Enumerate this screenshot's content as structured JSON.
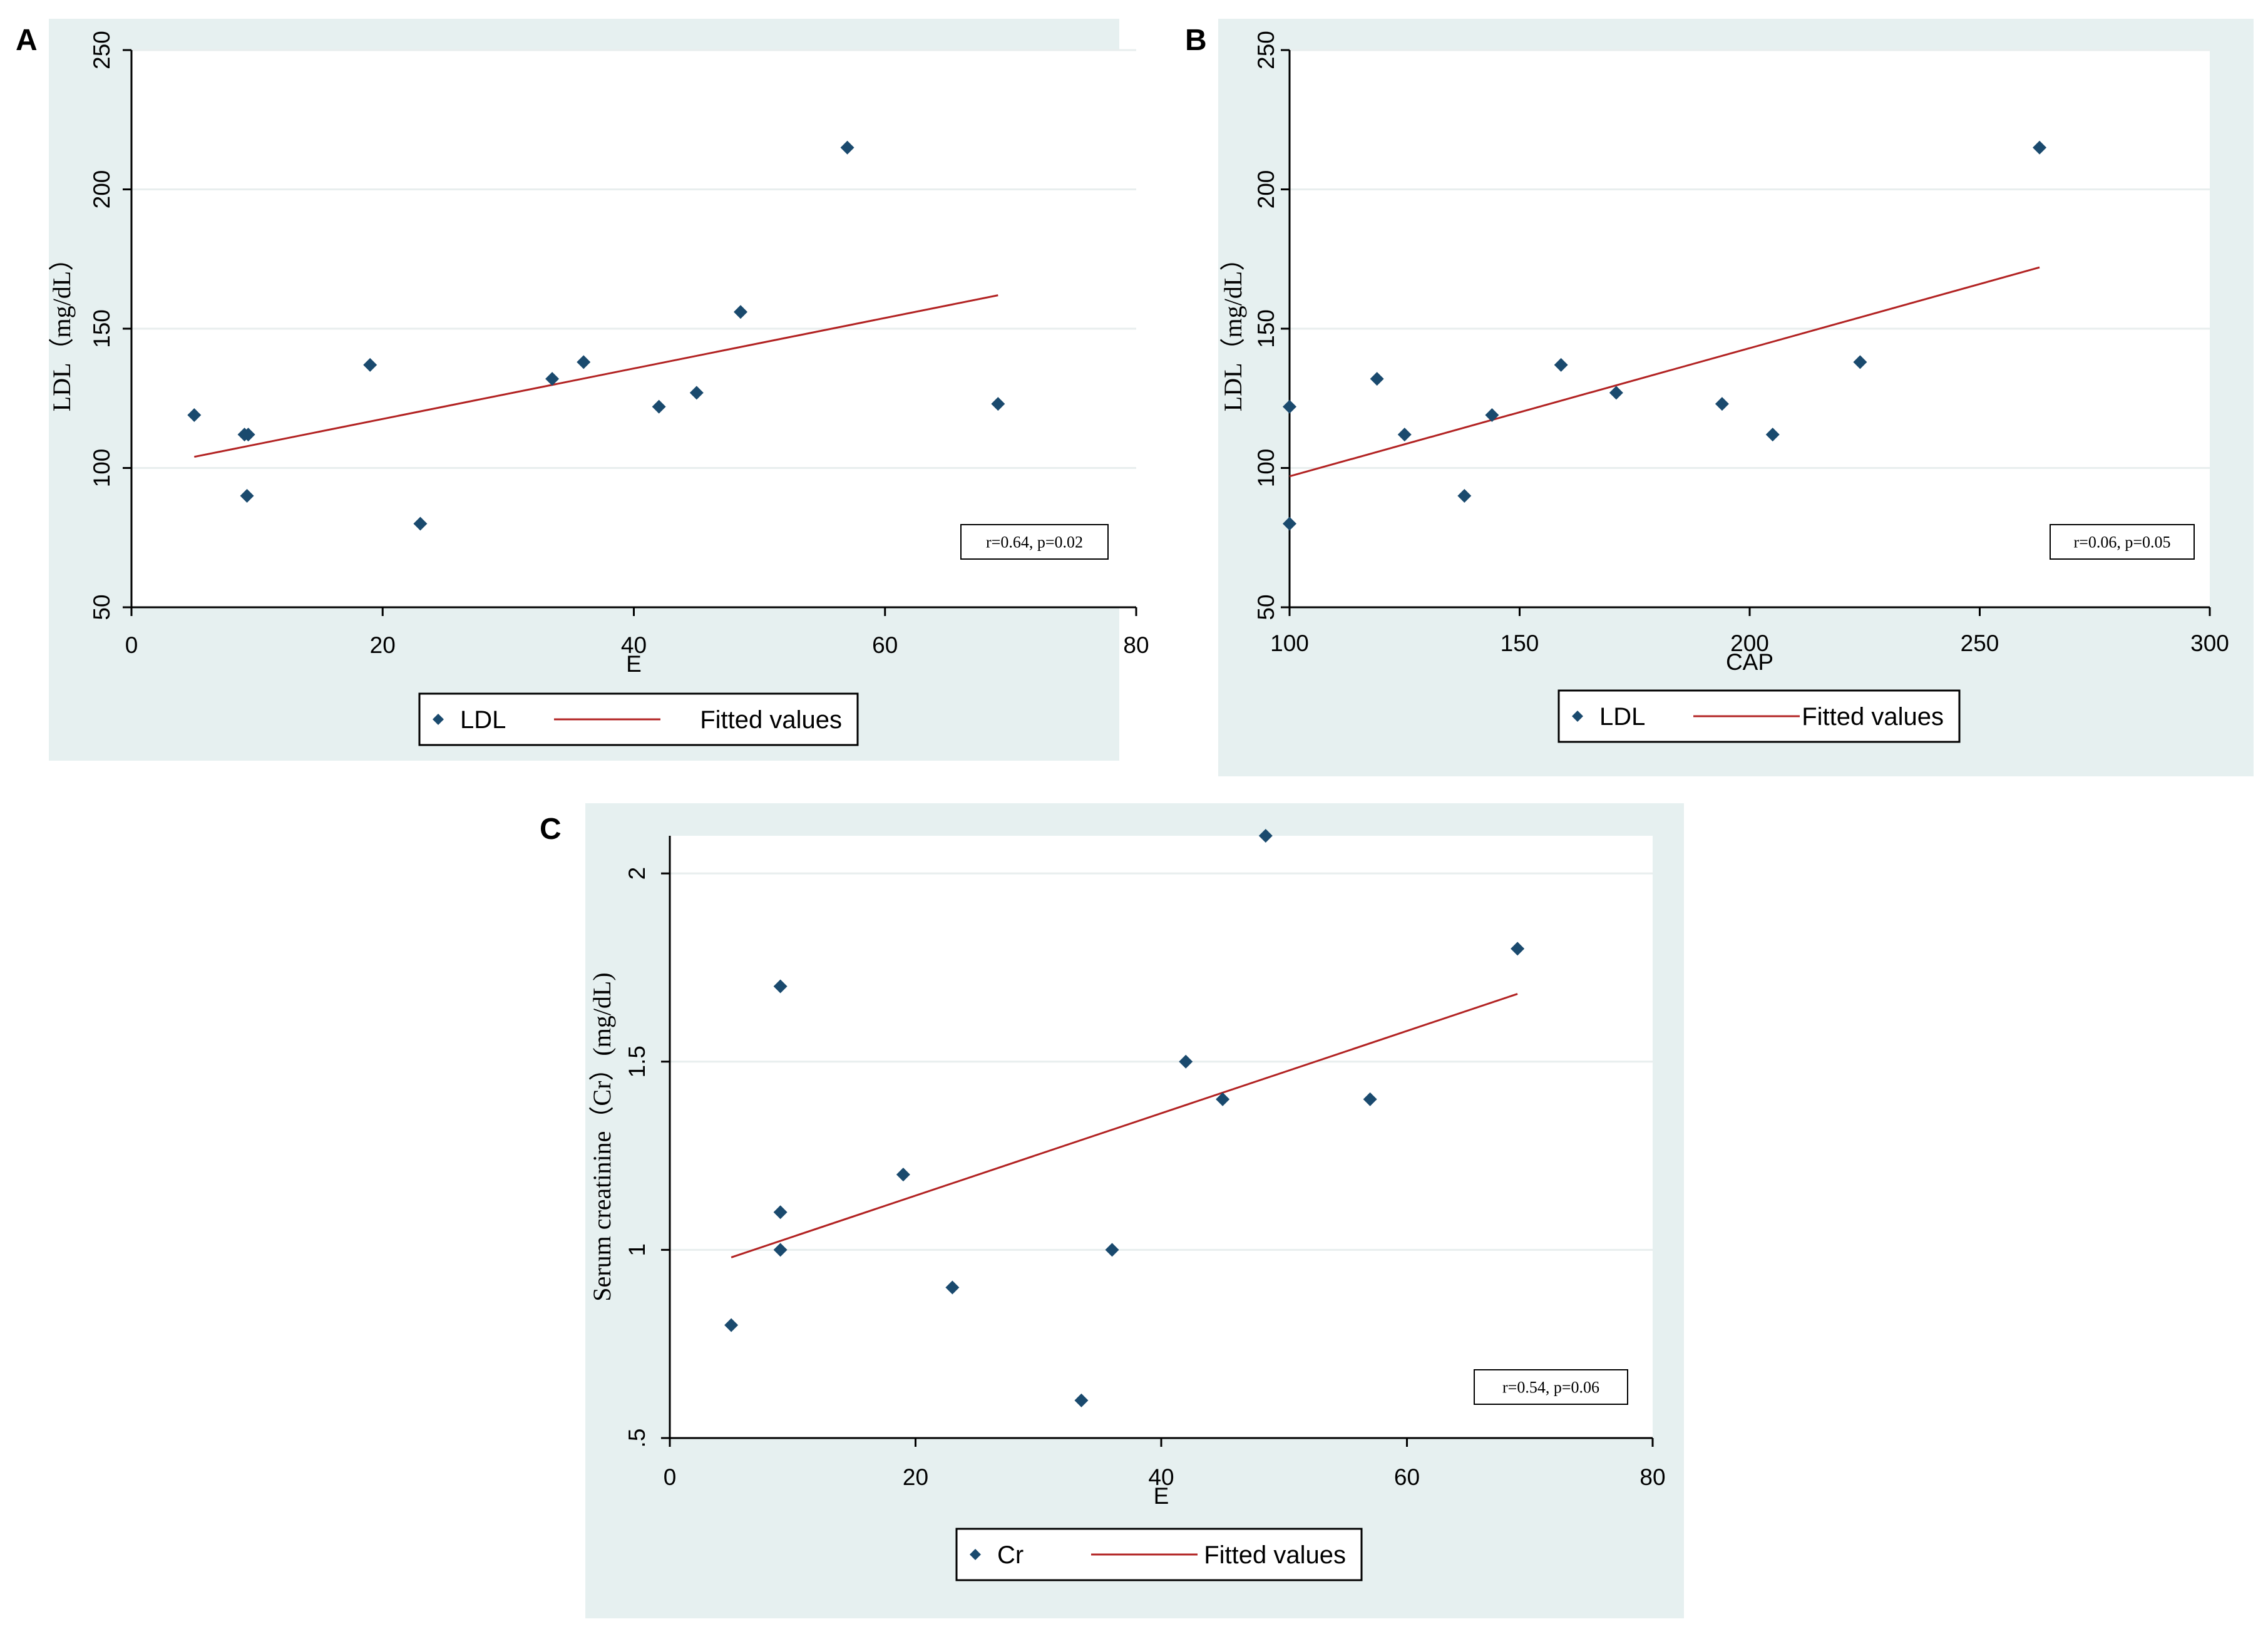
{
  "chart_data": [
    {
      "panel": "A",
      "type": "scatter",
      "xlabel": "E",
      "ylabel": "LDL（mg/dL）",
      "xlim": [
        0,
        80
      ],
      "ylim": [
        50,
        250
      ],
      "xticks": [
        0,
        20,
        40,
        60,
        80
      ],
      "yticks": [
        50,
        100,
        150,
        200,
        250
      ],
      "grid": true,
      "legend": {
        "position": "bottom-center",
        "entries": [
          "LDL",
          "Fitted values"
        ]
      },
      "annotation": "r=0.64, p=0.02",
      "series": [
        {
          "name": "LDL",
          "type": "scatter",
          "x": [
            5,
            9,
            9.3,
            9.2,
            19,
            23,
            33.5,
            36,
            42,
            45,
            48.5,
            57,
            69
          ],
          "y": [
            119,
            112,
            112,
            90,
            137,
            80,
            132,
            138,
            122,
            127,
            156,
            215,
            123
          ]
        },
        {
          "name": "Fitted values",
          "type": "line",
          "x": [
            5,
            69
          ],
          "y": [
            104,
            162
          ]
        }
      ],
      "colors": {
        "points": "#1a4a6e",
        "line": "#b22222",
        "background": "#e6f0f0",
        "plot": "#ffffff"
      }
    },
    {
      "panel": "B",
      "type": "scatter",
      "xlabel": "CAP",
      "ylabel": "LDL（mg/dL）",
      "xlim": [
        100,
        300
      ],
      "ylim": [
        50,
        250
      ],
      "xticks": [
        100,
        150,
        200,
        250,
        300
      ],
      "yticks": [
        50,
        100,
        150,
        200,
        250
      ],
      "grid": true,
      "legend": {
        "position": "bottom-center",
        "entries": [
          "LDL",
          "Fitted values"
        ]
      },
      "annotation": "r=0.06, p=0.05",
      "series": [
        {
          "name": "LDL",
          "type": "scatter",
          "x": [
            100,
            100,
            119,
            125,
            138,
            144,
            159,
            171,
            194,
            205,
            224,
            263
          ],
          "y": [
            122,
            80,
            132,
            112,
            90,
            119,
            137,
            127,
            123,
            112,
            138,
            215
          ]
        },
        {
          "name": "Fitted values",
          "type": "line",
          "x": [
            100,
            263
          ],
          "y": [
            97,
            172
          ]
        }
      ],
      "colors": {
        "points": "#1a4a6e",
        "line": "#b22222",
        "background": "#e6f0f0",
        "plot": "#ffffff"
      }
    },
    {
      "panel": "C",
      "type": "scatter",
      "xlabel": "E",
      "ylabel": "Serum creatinine（Cr）(mg/dL)",
      "xlim": [
        0,
        80
      ],
      "ylim": [
        0.5,
        2.1
      ],
      "xticks": [
        0,
        20,
        40,
        60,
        80
      ],
      "yticks": [
        0.5,
        1,
        1.5,
        2
      ],
      "ytick_labels": [
        ".5",
        "1",
        "1.5",
        "2"
      ],
      "grid": true,
      "legend": {
        "position": "bottom-center",
        "entries": [
          "Cr",
          "Fitted values"
        ]
      },
      "annotation": "r=0.54, p=0.06",
      "series": [
        {
          "name": "Cr",
          "type": "scatter",
          "x": [
            5,
            9,
            9,
            9,
            19,
            23,
            33.5,
            36,
            42,
            45,
            48.5,
            57,
            69
          ],
          "y": [
            0.8,
            1.7,
            1.1,
            1.0,
            1.2,
            0.9,
            0.6,
            1.0,
            1.5,
            1.4,
            2.1,
            1.4,
            1.8
          ]
        },
        {
          "name": "Fitted values",
          "type": "line",
          "x": [
            5,
            69
          ],
          "y": [
            0.98,
            1.68
          ]
        }
      ],
      "colors": {
        "points": "#1a4a6e",
        "line": "#b22222",
        "background": "#e6f0f0",
        "plot": "#ffffff"
      }
    }
  ]
}
